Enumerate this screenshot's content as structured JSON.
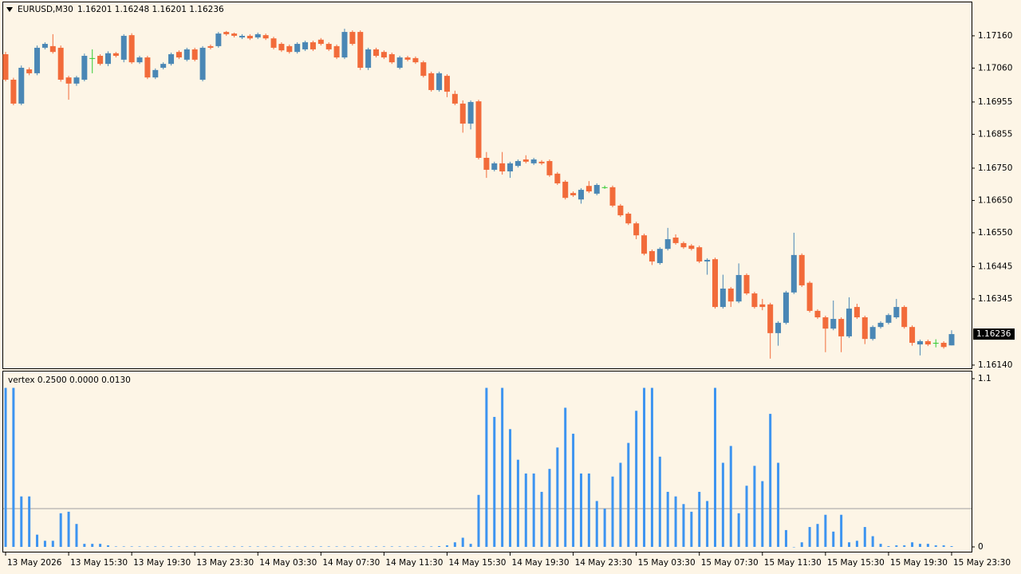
{
  "chart_data": [
    {
      "type": "candlestick",
      "title": "EURUSD,M30",
      "subtitle": "1.16201 1.16248 1.16201 1.16236",
      "bull_color": "#4a87b5",
      "bear_color": "#f26b3a",
      "doji_color": "#33cc33",
      "categories": [
        "13 May 2026",
        null,
        null,
        null,
        null,
        null,
        null,
        null,
        "13 May 15:30",
        null,
        null,
        null,
        null,
        null,
        null,
        null,
        "13 May 19:30",
        null,
        null,
        null,
        null,
        null,
        null,
        null,
        "13 May 23:30",
        null,
        null,
        null,
        null,
        null,
        null,
        null,
        "14 May 03:30",
        null,
        null,
        null,
        null,
        null,
        null,
        null,
        "14 May 07:30",
        null,
        null,
        null,
        null,
        null,
        null,
        null,
        "14 May 11:30",
        null,
        null,
        null,
        null,
        null,
        null,
        null,
        "14 May 15:30",
        null,
        null,
        null,
        null,
        null,
        null,
        null,
        "14 May 19:30",
        null,
        null,
        null,
        null,
        null,
        null,
        null,
        "14 May 23:30",
        null,
        null,
        null,
        null,
        null,
        null,
        null,
        "15 May 03:30",
        null,
        null,
        null,
        null,
        null,
        null,
        null,
        "15 May 07:30",
        null,
        null,
        null,
        null,
        null,
        null,
        null,
        "15 May 11:30",
        null,
        null,
        null,
        null,
        null,
        null,
        null,
        "15 May 15:30",
        null,
        null,
        null,
        null,
        null,
        null,
        null,
        "15 May 19:30",
        null,
        null,
        null,
        null,
        null,
        null,
        null,
        "15 May 23:30"
      ],
      "open": [
        1.17103,
        1.17024,
        1.1695,
        1.17056,
        1.17044,
        1.17123,
        1.17128,
        1.17123,
        1.17031,
        1.17012,
        1.17024,
        1.17091,
        1.17098,
        1.17073,
        1.17106,
        1.17086,
        1.17162,
        1.17078,
        1.17093,
        1.17031,
        1.17061,
        1.17073,
        1.1711,
        1.17086,
        1.17118,
        1.17024,
        1.17128,
        1.17128,
        1.17172,
        1.17167,
        1.17155,
        1.1716,
        1.17155,
        1.17162,
        1.17152,
        1.17135,
        1.17128,
        1.1711,
        1.17118,
        1.1714,
        1.17148,
        1.17135,
        1.17128,
        1.17093,
        1.17172,
        1.17172,
        1.17061,
        1.17118,
        1.1711,
        1.17103,
        1.17061,
        1.17093,
        1.17091,
        1.17078,
        1.17044,
        1.16992,
        1.17036,
        1.1698,
        1.1695,
        1.16888,
        1.16957,
        1.16782,
        1.16745,
        1.16765,
        1.1674,
        1.16757,
        1.16777,
        1.16765,
        1.1677,
        1.16772,
        1.16733,
        1.16708,
        1.16673,
        1.16653,
        1.16695,
        1.16671,
        1.16691,
        1.16691,
        1.16634,
        1.16609,
        1.16579,
        1.16542,
        1.16493,
        1.16456,
        1.165,
        1.16535,
        1.16518,
        1.1651,
        1.16505,
        1.16461,
        1.16468,
        1.1632,
        1.16377,
        1.16337,
        1.16419,
        1.16362,
        1.16328,
        1.16328,
        1.16239,
        1.16271,
        1.16365,
        1.16481,
        1.16395,
        1.16308,
        1.16288,
        1.16253,
        1.16283,
        1.16229,
        1.1632,
        1.16288,
        1.16221,
        1.16258,
        1.16271,
        1.16288,
        1.1632,
        1.16258,
        1.16204,
        1.16214,
        1.16209,
        1.16209,
        1.16201
      ],
      "high": [
        1.1711,
        1.1703,
        1.17068,
        1.17062,
        1.1713,
        1.1714,
        1.17165,
        1.1713,
        1.17036,
        1.17036,
        1.17105,
        1.17118,
        1.17103,
        1.17112,
        1.1711,
        1.17165,
        1.17168,
        1.17098,
        1.17098,
        1.17059,
        1.17078,
        1.17108,
        1.17115,
        1.17123,
        1.17123,
        1.17128,
        1.17133,
        1.17172,
        1.17175,
        1.1717,
        1.17165,
        1.17165,
        1.1717,
        1.17167,
        1.17157,
        1.1714,
        1.17133,
        1.1714,
        1.17145,
        1.17145,
        1.17153,
        1.1714,
        1.17133,
        1.17182,
        1.17177,
        1.17177,
        1.17123,
        1.17123,
        1.17115,
        1.17108,
        1.17098,
        1.17098,
        1.17096,
        1.17083,
        1.17049,
        1.17049,
        1.17041,
        1.1699,
        1.1696,
        1.1696,
        1.16962,
        1.168,
        1.1677,
        1.168,
        1.1677,
        1.16777,
        1.1679,
        1.16782,
        1.16775,
        1.16777,
        1.16738,
        1.16713,
        1.16678,
        1.16688,
        1.1671,
        1.16703,
        1.16696,
        1.16696,
        1.16639,
        1.16614,
        1.16584,
        1.16547,
        1.16498,
        1.16505,
        1.16565,
        1.16545,
        1.16523,
        1.16515,
        1.1651,
        1.16471,
        1.16473,
        1.1642,
        1.16382,
        1.16455,
        1.16424,
        1.16367,
        1.16345,
        1.16333,
        1.16276,
        1.1637,
        1.1655,
        1.16486,
        1.164,
        1.16313,
        1.16293,
        1.1634,
        1.16288,
        1.1635,
        1.1633,
        1.16293,
        1.16263,
        1.16276,
        1.163,
        1.16345,
        1.16325,
        1.16263,
        1.16219,
        1.16219,
        1.1622,
        1.16214,
        1.16248
      ],
      "low": [
        1.17019,
        1.16945,
        1.16945,
        1.17038,
        1.17038,
        1.17118,
        1.17105,
        1.17018,
        1.16962,
        1.17005,
        1.17019,
        1.17044,
        1.17068,
        1.17066,
        1.17093,
        1.17078,
        1.17073,
        1.17073,
        1.17026,
        1.17026,
        1.17056,
        1.17068,
        1.17088,
        1.17081,
        1.17081,
        1.17019,
        1.17118,
        1.17123,
        1.1716,
        1.17155,
        1.1715,
        1.17147,
        1.1715,
        1.17147,
        1.17118,
        1.1711,
        1.17105,
        1.17105,
        1.17113,
        1.17113,
        1.1713,
        1.17113,
        1.17088,
        1.17088,
        1.1713,
        1.17054,
        1.17054,
        1.17093,
        1.17088,
        1.17073,
        1.17056,
        1.17081,
        1.17073,
        1.17031,
        1.16987,
        1.16987,
        1.1697,
        1.16945,
        1.1686,
        1.1687,
        1.16777,
        1.1672,
        1.1674,
        1.1673,
        1.1672,
        1.16752,
        1.16765,
        1.1676,
        1.1676,
        1.16723,
        1.16698,
        1.16653,
        1.16661,
        1.1664,
        1.16673,
        1.16666,
        1.16686,
        1.16629,
        1.16599,
        1.16574,
        1.1653,
        1.1648,
        1.1645,
        1.16451,
        1.16495,
        1.16513,
        1.165,
        1.16495,
        1.16456,
        1.1642,
        1.16315,
        1.16315,
        1.1632,
        1.16332,
        1.16357,
        1.16315,
        1.1631,
        1.1616,
        1.162,
        1.16266,
        1.1636,
        1.16382,
        1.16303,
        1.16283,
        1.1618,
        1.16248,
        1.1618,
        1.16224,
        1.16283,
        1.16205,
        1.16216,
        1.16253,
        1.16266,
        1.16283,
        1.16253,
        1.162,
        1.1617,
        1.16199,
        1.16195,
        1.16191,
        1.16201
      ],
      "close": [
        1.17024,
        1.1695,
        1.17061,
        1.17044,
        1.17123,
        1.17135,
        1.1711,
        1.17024,
        1.17012,
        1.17031,
        1.17098,
        1.17091,
        1.17073,
        1.17106,
        1.17098,
        1.1716,
        1.17078,
        1.17093,
        1.17031,
        1.17054,
        1.17073,
        1.17103,
        1.17093,
        1.17118,
        1.17086,
        1.17123,
        1.17123,
        1.17167,
        1.17165,
        1.1716,
        1.1716,
        1.17152,
        1.17165,
        1.17152,
        1.17123,
        1.17115,
        1.1711,
        1.17135,
        1.1714,
        1.17118,
        1.17135,
        1.17118,
        1.17093,
        1.17172,
        1.17135,
        1.17061,
        1.17118,
        1.17098,
        1.17093,
        1.17078,
        1.17093,
        1.17086,
        1.17078,
        1.17036,
        1.16992,
        1.17044,
        1.16987,
        1.1695,
        1.16888,
        1.16955,
        1.16782,
        1.16745,
        1.16765,
        1.1674,
        1.16765,
        1.16772,
        1.1677,
        1.16777,
        1.16765,
        1.16728,
        1.16703,
        1.16658,
        1.16666,
        1.16683,
        1.16678,
        1.16698,
        1.16691,
        1.16634,
        1.16604,
        1.16579,
        1.16542,
        1.16485,
        1.16461,
        1.165,
        1.1653,
        1.16518,
        1.16505,
        1.165,
        1.16461,
        1.16466,
        1.1632,
        1.16377,
        1.16337,
        1.16419,
        1.16362,
        1.1632,
        1.1632,
        1.16239,
        1.16271,
        1.16365,
        1.16481,
        1.16387,
        1.16308,
        1.16288,
        1.16253,
        1.16283,
        1.16229,
        1.16315,
        1.16288,
        1.16221,
        1.16258,
        1.16271,
        1.16295,
        1.1632,
        1.16258,
        1.16209,
        1.16214,
        1.16204,
        1.16209,
        1.16196,
        1.16236
      ],
      "ylim": [
        1.1613,
        1.17266
      ],
      "yticks": [
        {
          "value": 1.1716,
          "label": "1.17160"
        },
        {
          "value": 1.1706,
          "label": "1.17060"
        },
        {
          "value": 1.16955,
          "label": "1.16955"
        },
        {
          "value": 1.16855,
          "label": "1.16855"
        },
        {
          "value": 1.1675,
          "label": "1.16750"
        },
        {
          "value": 1.1665,
          "label": "1.16650"
        },
        {
          "value": 1.1655,
          "label": "1.16550"
        },
        {
          "value": 1.16445,
          "label": "1.16445"
        },
        {
          "value": 1.16345,
          "label": "1.16345"
        },
        {
          "value": 1.1614,
          "label": "1.16140"
        }
      ],
      "last_price": {
        "value": 1.16236,
        "label": "1.16236"
      }
    },
    {
      "type": "bar",
      "title": "vertex 0.2500 0.0000 0.0130",
      "color": "#3d94f0",
      "level": 0.25,
      "level_color": "#a0a0a0",
      "values": [
        1.04,
        1.04,
        0.33,
        0.33,
        0.08,
        0.04,
        0.04,
        0.22,
        0.23,
        0.15,
        0.02,
        0.02,
        0.02,
        0.01,
        0.003,
        0.003,
        0.003,
        0.003,
        0.003,
        0.003,
        0.003,
        0.003,
        0.003,
        0.003,
        0.003,
        0.003,
        0.003,
        0.003,
        0.003,
        0.003,
        0.003,
        0.003,
        0.003,
        0.003,
        0.003,
        0.003,
        0.003,
        0.003,
        0.003,
        0.003,
        0.003,
        0.003,
        0.003,
        0.003,
        0.003,
        0.003,
        0.003,
        0.003,
        0.003,
        0.003,
        0.003,
        0.003,
        0.003,
        0.003,
        0.003,
        0.005,
        0.01,
        0.03,
        0.06,
        0.02,
        0.34,
        1.04,
        0.85,
        1.04,
        0.77,
        0.57,
        0.48,
        0.48,
        0.36,
        0.51,
        0.65,
        0.91,
        0.74,
        0.48,
        0.48,
        0.3,
        0.25,
        0.46,
        0.55,
        0.68,
        0.89,
        1.04,
        1.04,
        0.59,
        0.36,
        0.33,
        0.28,
        0.23,
        0.36,
        0.3,
        1.04,
        0.55,
        0.66,
        0.22,
        0.4,
        0.53,
        0.43,
        0.87,
        0.55,
        0.11,
        0.0,
        0.03,
        0.13,
        0.15,
        0.21,
        0.1,
        0.21,
        0.03,
        0.04,
        0.13,
        0.07,
        0.02,
        0.005,
        0.01,
        0.01,
        0.03,
        0.02,
        0.02,
        0.01,
        0.01,
        0.005
      ],
      "ylim": [
        0,
        1.1
      ],
      "yticks": [
        0,
        1.1
      ]
    }
  ]
}
